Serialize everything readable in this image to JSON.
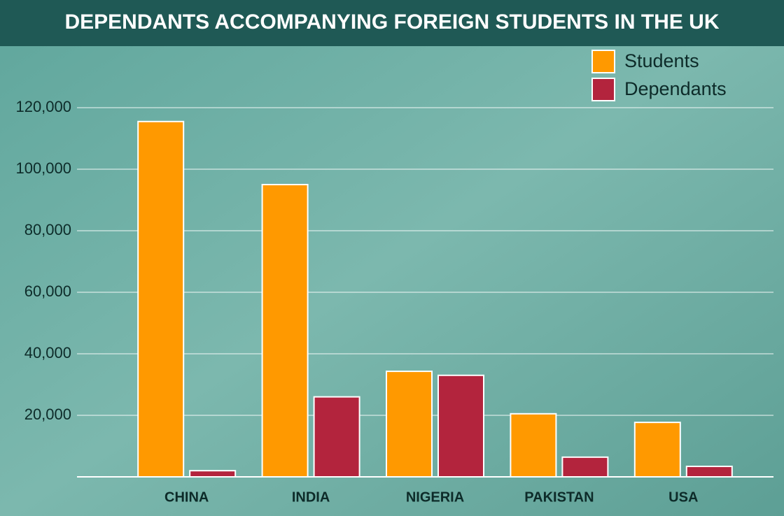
{
  "chart_data": {
    "type": "bar",
    "title": "DEPENDANTS ACCOMPANYING FOREIGN STUDENTS IN THE UK",
    "categories": [
      "CHINA",
      "INDIA",
      "NIGERIA",
      "PAKISTAN",
      "USA"
    ],
    "series": [
      {
        "name": "Students",
        "color": "#ff9900",
        "values": [
          115500,
          95000,
          34300,
          20500,
          17700
        ]
      },
      {
        "name": "Dependants",
        "color": "#b3243d",
        "values": [
          2000,
          26000,
          33000,
          6400,
          3400
        ]
      }
    ],
    "ylim": [
      0,
      120000
    ],
    "yticks": [
      {
        "value": 20000,
        "label": "20,000"
      },
      {
        "value": 40000,
        "label": "40,000"
      },
      {
        "value": 60000,
        "label": "60,000"
      },
      {
        "value": 80000,
        "label": "80,000"
      },
      {
        "value": 100000,
        "label": "100,000"
      },
      {
        "value": 120000,
        "label": "120,000"
      }
    ],
    "grid": true,
    "legend": "top-right"
  }
}
